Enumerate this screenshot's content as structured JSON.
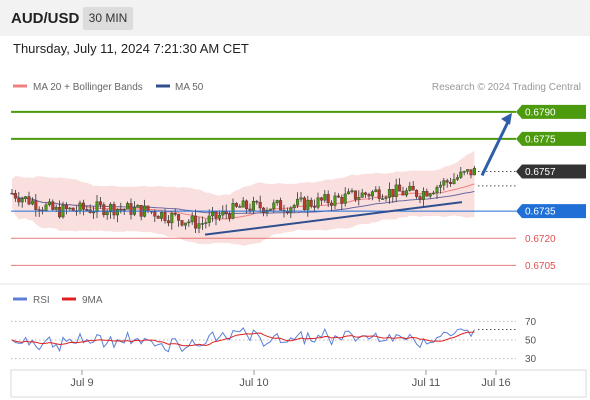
{
  "header": {
    "symbol": "AUD/USD",
    "timeframe": "30 MIN",
    "datetime": "Thursday, July 11, 2024 7:21:30 AM CET"
  },
  "chart_data": [
    {
      "type": "candlestick",
      "legend": [
        {
          "name": "MA 20 + Bollinger Bands",
          "color": "#f08080"
        },
        {
          "name": "MA 50",
          "color": "#2f4f8f"
        }
      ],
      "credit": "Research © 2024 Trading Central",
      "ylim": [
        0.6698,
        0.6796
      ],
      "levels": [
        {
          "value": 0.679,
          "label": "0.6790",
          "color": "#4c9a0e",
          "kind": "resistance"
        },
        {
          "value": 0.6775,
          "label": "0.6775",
          "color": "#4c9a0e",
          "kind": "resistance"
        },
        {
          "value": 0.6757,
          "label": "0.6757",
          "color": "#333333",
          "kind": "last-price"
        },
        {
          "value": 0.6735,
          "label": "0.6735",
          "color": "#1f6fd6",
          "kind": "pivot"
        },
        {
          "value": 0.672,
          "label": "0.6720",
          "color": "#e05050",
          "kind": "support"
        },
        {
          "value": 0.6705,
          "label": "0.6705",
          "color": "#e05050",
          "kind": "support"
        }
      ],
      "x_ticks": [
        "Jul 9",
        "Jul 10",
        "Jul 11",
        "Jul 16"
      ],
      "trendline": [
        [
          0.6722,
          0.674
        ]
      ],
      "forecast_arrow": {
        "from": 0.6757,
        "to": 0.679
      }
    },
    {
      "type": "line",
      "legend": [
        {
          "name": "RSI",
          "color": "#5b7fd6"
        },
        {
          "name": "9MA",
          "color": "#e02020"
        }
      ],
      "ylim": [
        22,
        78
      ],
      "y_ticks": [
        "70",
        "50",
        "30"
      ],
      "dotted_levels": [
        70,
        50,
        30
      ]
    }
  ]
}
